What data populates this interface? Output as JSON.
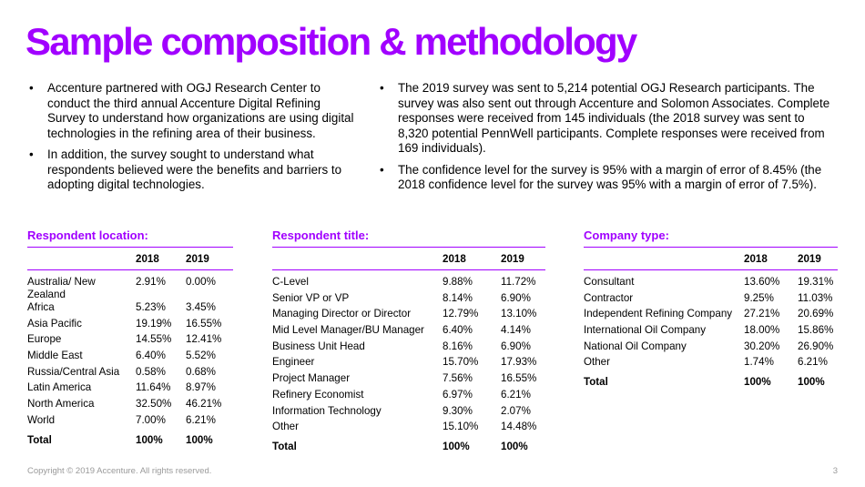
{
  "title": "Sample composition & methodology",
  "left_bullets": [
    "Accenture partnered with OGJ Research Center to conduct the third annual Accenture Digital Refining Survey to understand how organizations are using digital technologies in the refining area of their business.",
    "In addition, the survey sought to understand what respondents believed were the benefits and barriers to adopting digital technologies."
  ],
  "right_bullets": [
    "The 2019 survey was sent to 5,214 potential OGJ Research participants. The survey was also sent out through Accenture and Solomon Associates. Complete responses were received from 145 individuals (the 2018 survey was sent to 8,320 potential PennWell participants. Complete responses were received from 169 individuals).",
    "The confidence level for the survey is 95% with a margin of error of 8.45% (the 2018 confidence level for the survey was 95% with a margin of error of 7.5%)."
  ],
  "tables": {
    "location": {
      "title": "Respondent location:",
      "col1": "2018",
      "col2": "2019",
      "rows": [
        {
          "label": "Australia/ New Zealand",
          "v2018": "2.91%",
          "v2019": "0.00%"
        },
        {
          "label": "Africa",
          "v2018": "5.23%",
          "v2019": "3.45%"
        },
        {
          "label": "Asia Pacific",
          "v2018": "19.19%",
          "v2019": "16.55%"
        },
        {
          "label": "Europe",
          "v2018": "14.55%",
          "v2019": "12.41%"
        },
        {
          "label": "Middle East",
          "v2018": "6.40%",
          "v2019": "5.52%"
        },
        {
          "label": "Russia/Central Asia",
          "v2018": "0.58%",
          "v2019": "0.68%"
        },
        {
          "label": "Latin America",
          "v2018": "11.64%",
          "v2019": "8.97%"
        },
        {
          "label": "North America",
          "v2018": "32.50%",
          "v2019": "46.21%"
        },
        {
          "label": "World",
          "v2018": "7.00%",
          "v2019": "6.21%"
        }
      ],
      "total": {
        "label": "Total",
        "v2018": "100%",
        "v2019": "100%"
      }
    },
    "title_tbl": {
      "title": "Respondent title:",
      "col1": "2018",
      "col2": "2019",
      "rows": [
        {
          "label": "C-Level",
          "v2018": "9.88%",
          "v2019": "11.72%"
        },
        {
          "label": "Senior VP or VP",
          "v2018": "8.14%",
          "v2019": "6.90%"
        },
        {
          "label": "Managing Director or Director",
          "v2018": "12.79%",
          "v2019": "13.10%"
        },
        {
          "label": "Mid Level Manager/BU Manager",
          "v2018": "6.40%",
          "v2019": "4.14%"
        },
        {
          "label": "Business Unit Head",
          "v2018": "8.16%",
          "v2019": "6.90%"
        },
        {
          "label": "Engineer",
          "v2018": "15.70%",
          "v2019": "17.93%"
        },
        {
          "label": "Project Manager",
          "v2018": "7.56%",
          "v2019": "16.55%"
        },
        {
          "label": "Refinery Economist",
          "v2018": "6.97%",
          "v2019": "6.21%"
        },
        {
          "label": "Information Technology",
          "v2018": "9.30%",
          "v2019": "2.07%"
        },
        {
          "label": "Other",
          "v2018": "15.10%",
          "v2019": "14.48%"
        }
      ],
      "total": {
        "label": "Total",
        "v2018": "100%",
        "v2019": "100%"
      }
    },
    "company": {
      "title": "Company type:",
      "col1": "2018",
      "col2": "2019",
      "rows": [
        {
          "label": "Consultant",
          "v2018": "13.60%",
          "v2019": "19.31%"
        },
        {
          "label": "Contractor",
          "v2018": "9.25%",
          "v2019": "11.03%"
        },
        {
          "label": "Independent Refining Company",
          "v2018": "27.21%",
          "v2019": "20.69%"
        },
        {
          "label": "International Oil Company",
          "v2018": "18.00%",
          "v2019": "15.86%"
        },
        {
          "label": "National Oil Company",
          "v2018": "30.20%",
          "v2019": "26.90%"
        },
        {
          "label": "Other",
          "v2018": "1.74%",
          "v2019": "6.21%"
        }
      ],
      "total": {
        "label": "Total",
        "v2018": "100%",
        "v2019": "100%"
      }
    }
  },
  "footer": "Copyright © 2019 Accenture. All rights reserved.",
  "page_number": "3",
  "colors": {
    "accent": "#a100ff",
    "muted": "#9a9a9a"
  }
}
